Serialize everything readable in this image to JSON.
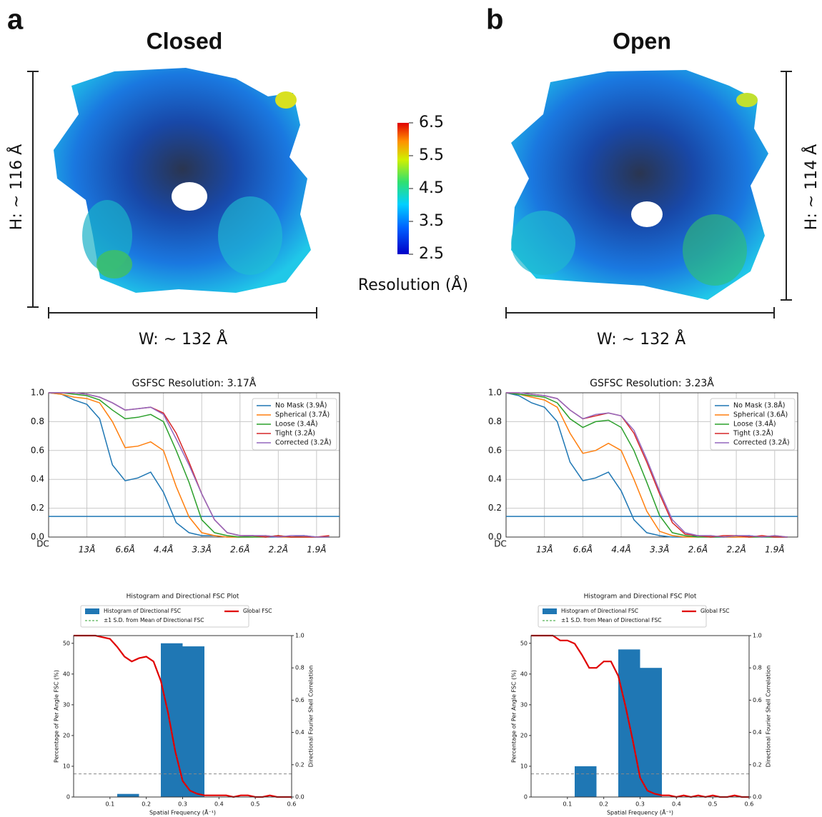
{
  "panels": [
    {
      "letter": "a",
      "title": "Closed",
      "height_label": "H: ~ 116 Å",
      "width_label": "W: ~ 132 Å"
    },
    {
      "letter": "b",
      "title": "Open",
      "height_label": "H: ~ 114 Å",
      "width_label": "W: ~ 132 Å"
    }
  ],
  "colorbar": {
    "label": "Resolution (Å)",
    "clim": [
      2.5,
      6.5
    ],
    "ticks": [
      6.5,
      5.5,
      4.5,
      3.5,
      2.5
    ]
  },
  "chart_data": [
    {
      "type": "line",
      "title": "GSFSC Resolution: 3.17Å",
      "x": [
        0,
        0.025,
        0.05,
        0.075,
        0.1,
        0.125,
        0.15,
        0.175,
        0.2,
        0.225,
        0.25,
        0.275,
        0.3,
        0.325,
        0.35,
        0.375,
        0.4,
        0.425,
        0.45,
        0.475,
        0.5,
        0.525,
        0.55
      ],
      "xlim": [
        0,
        0.57
      ],
      "ylim": [
        0,
        1
      ],
      "grid": true,
      "xticks": [
        {
          "value": 0,
          "label": "DC"
        },
        {
          "value": 0.075,
          "label": "13Å"
        },
        {
          "value": 0.15,
          "label": "6.6Å"
        },
        {
          "value": 0.225,
          "label": "4.4Å"
        },
        {
          "value": 0.3,
          "label": "3.3Å"
        },
        {
          "value": 0.375,
          "label": "2.6Å"
        },
        {
          "value": 0.45,
          "label": "2.2Å"
        },
        {
          "value": 0.525,
          "label": "1.9Å"
        }
      ],
      "yticks": [
        {
          "value": 0,
          "label": "0.0"
        },
        0.2,
        0.4,
        0.6,
        0.8,
        {
          "value": 1,
          "label": "1.0"
        }
      ],
      "threshold": {
        "value": 0.143,
        "color": "#1f77b4"
      },
      "series": [
        {
          "name": "No Mask (3.9Å)",
          "color": "#1f77b4",
          "values": [
            1,
            0.99,
            0.95,
            0.92,
            0.82,
            0.5,
            0.39,
            0.41,
            0.45,
            0.31,
            0.1,
            0.03,
            0.01,
            0.01,
            0,
            0,
            0.01,
            0,
            0,
            0,
            0.01,
            0,
            0
          ]
        },
        {
          "name": "Spherical (3.7Å)",
          "color": "#ff7f0e",
          "values": [
            1,
            0.99,
            0.97,
            0.96,
            0.93,
            0.8,
            0.62,
            0.63,
            0.66,
            0.6,
            0.35,
            0.14,
            0.03,
            0.01,
            0,
            0,
            0,
            0.01,
            0,
            0,
            0,
            0,
            0
          ]
        },
        {
          "name": "Loose (3.4Å)",
          "color": "#2ca02c",
          "values": [
            1,
            1,
            0.99,
            0.98,
            0.95,
            0.88,
            0.82,
            0.83,
            0.85,
            0.8,
            0.6,
            0.38,
            0.12,
            0.03,
            0.01,
            0,
            0,
            0,
            0.01,
            0,
            0,
            0,
            0
          ]
        },
        {
          "name": "Tight (3.2Å)",
          "color": "#d62728",
          "values": [
            1,
            1,
            1,
            0.99,
            0.97,
            0.93,
            0.88,
            0.89,
            0.9,
            0.86,
            0.72,
            0.52,
            0.3,
            0.12,
            0.03,
            0.01,
            0.01,
            0,
            0.01,
            0,
            0,
            0,
            0.01
          ]
        },
        {
          "name": "Corrected (3.2Å)",
          "color": "#9467bd",
          "values": [
            1,
            1,
            1,
            0.99,
            0.97,
            0.93,
            0.88,
            0.89,
            0.9,
            0.85,
            0.68,
            0.5,
            0.3,
            0.12,
            0.03,
            0.01,
            0.01,
            0.01,
            0,
            0.01,
            0.01,
            0,
            0
          ]
        }
      ]
    },
    {
      "type": "line",
      "title": "GSFSC Resolution: 3.23Å",
      "x": [
        0,
        0.025,
        0.05,
        0.075,
        0.1,
        0.125,
        0.15,
        0.175,
        0.2,
        0.225,
        0.25,
        0.275,
        0.3,
        0.325,
        0.35,
        0.375,
        0.4,
        0.425,
        0.45,
        0.475,
        0.5,
        0.525,
        0.55
      ],
      "xlim": [
        0,
        0.57
      ],
      "ylim": [
        0,
        1
      ],
      "grid": true,
      "xticks": [
        {
          "value": 0,
          "label": "DC"
        },
        {
          "value": 0.075,
          "label": "13Å"
        },
        {
          "value": 0.15,
          "label": "6.6Å"
        },
        {
          "value": 0.225,
          "label": "4.4Å"
        },
        {
          "value": 0.3,
          "label": "3.3Å"
        },
        {
          "value": 0.375,
          "label": "2.6Å"
        },
        {
          "value": 0.45,
          "label": "2.2Å"
        },
        {
          "value": 0.525,
          "label": "1.9Å"
        }
      ],
      "yticks": [
        {
          "value": 0,
          "label": "0.0"
        },
        0.2,
        0.4,
        0.6,
        0.8,
        {
          "value": 1,
          "label": "1.0"
        }
      ],
      "threshold": {
        "value": 0.143,
        "color": "#1f77b4"
      },
      "series": [
        {
          "name": "No Mask (3.8Å)",
          "color": "#1f77b4",
          "values": [
            1,
            0.98,
            0.93,
            0.9,
            0.8,
            0.52,
            0.39,
            0.41,
            0.45,
            0.32,
            0.12,
            0.03,
            0.01,
            0,
            0,
            0.01,
            0,
            0,
            0,
            0.01,
            0,
            0,
            0
          ]
        },
        {
          "name": "Spherical (3.6Å)",
          "color": "#ff7f0e",
          "values": [
            1,
            0.99,
            0.97,
            0.95,
            0.9,
            0.72,
            0.58,
            0.6,
            0.65,
            0.6,
            0.4,
            0.18,
            0.04,
            0.01,
            0,
            0,
            0.01,
            0,
            0,
            0,
            0,
            0.01,
            0
          ]
        },
        {
          "name": "Loose (3.4Å)",
          "color": "#2ca02c",
          "values": [
            1,
            0.99,
            0.98,
            0.97,
            0.93,
            0.82,
            0.76,
            0.8,
            0.81,
            0.76,
            0.6,
            0.38,
            0.15,
            0.03,
            0.01,
            0,
            0,
            0,
            0.01,
            0,
            0,
            0,
            0
          ]
        },
        {
          "name": "Tight (3.2Å)",
          "color": "#d62728",
          "values": [
            1,
            1,
            0.99,
            0.98,
            0.96,
            0.88,
            0.82,
            0.84,
            0.86,
            0.84,
            0.72,
            0.52,
            0.3,
            0.1,
            0.02,
            0.01,
            0,
            0.01,
            0.01,
            0,
            0.01,
            0,
            0
          ]
        },
        {
          "name": "Corrected (3.2Å)",
          "color": "#9467bd",
          "values": [
            1,
            1,
            0.99,
            0.98,
            0.96,
            0.88,
            0.82,
            0.85,
            0.86,
            0.84,
            0.74,
            0.54,
            0.32,
            0.12,
            0.03,
            0.01,
            0.01,
            0,
            0.01,
            0.01,
            0,
            0.01,
            0
          ]
        }
      ]
    },
    {
      "type": "histogram",
      "title": "Histogram and Directional FSC Plot",
      "x_label": "Spatial Frequency (Å⁻¹)",
      "y_label": "Percentage of Per Angle FSC (%)",
      "y2_label": "Directional Fourier Shell Correlation",
      "bins": [
        0,
        0.06,
        0.12,
        0.18,
        0.24,
        0.3,
        0.36
      ],
      "counts": [
        0,
        0,
        1,
        0,
        50,
        49
      ],
      "xlim": [
        0,
        0.6
      ],
      "ylim": [
        0,
        52.5
      ],
      "y2lim": [
        0,
        1
      ],
      "xticks": [
        0.1,
        0.2,
        0.3,
        0.4,
        0.5,
        0.6
      ],
      "yticks": [
        0,
        10,
        20,
        30,
        40,
        50
      ],
      "y2ticks": [
        {
          "value": 0,
          "label": "0.0"
        },
        0.2,
        0.4,
        0.6,
        0.8,
        {
          "value": 1,
          "label": "1.0"
        }
      ],
      "threshold": {
        "value": 0.143,
        "axis": "y2",
        "color": "#888888"
      },
      "series": [
        {
          "name": "Histogram of Directional FSC",
          "color": "#1f77b4",
          "marker": "patch"
        },
        {
          "name": "±1 S.D. from Mean of Directional FSC",
          "color": "#2ca02c",
          "marker": "dashed"
        },
        {
          "name": "Global FSC",
          "color": "#e00000",
          "marker": "line",
          "axis": "y2",
          "x": [
            0,
            0.02,
            0.04,
            0.06,
            0.08,
            0.1,
            0.12,
            0.14,
            0.16,
            0.18,
            0.2,
            0.22,
            0.24,
            0.26,
            0.28,
            0.3,
            0.32,
            0.34,
            0.36,
            0.38,
            0.4,
            0.42,
            0.44,
            0.46,
            0.48,
            0.5,
            0.52,
            0.54,
            0.56,
            0.58,
            0.6
          ],
          "values": [
            1,
            1,
            1,
            1,
            0.99,
            0.98,
            0.93,
            0.87,
            0.84,
            0.86,
            0.87,
            0.84,
            0.72,
            0.52,
            0.28,
            0.1,
            0.04,
            0.02,
            0.01,
            0.01,
            0.01,
            0.01,
            0,
            0.01,
            0.01,
            0,
            0,
            0.01,
            0,
            0,
            0
          ]
        }
      ]
    },
    {
      "type": "histogram",
      "title": "Histogram and Directional FSC Plot",
      "x_label": "Spatial Frequency (Å⁻¹)",
      "y_label": "Percentage of Per Angle FSC (%)",
      "y2_label": "Directional Fourier Shell Correlation",
      "bins": [
        0,
        0.06,
        0.12,
        0.18,
        0.24,
        0.3,
        0.36
      ],
      "counts": [
        0,
        0,
        10,
        0,
        48,
        42
      ],
      "xlim": [
        0,
        0.6
      ],
      "ylim": [
        0,
        52.5
      ],
      "y2lim": [
        0,
        1
      ],
      "xticks": [
        0.1,
        0.2,
        0.3,
        0.4,
        0.5,
        0.6
      ],
      "yticks": [
        0,
        10,
        20,
        30,
        40,
        50
      ],
      "y2ticks": [
        {
          "value": 0,
          "label": "0.0"
        },
        0.2,
        0.4,
        0.6,
        0.8,
        {
          "value": 1,
          "label": "1.0"
        }
      ],
      "threshold": {
        "value": 0.143,
        "axis": "y2",
        "color": "#888888"
      },
      "series": [
        {
          "name": "Histogram of Directional FSC",
          "color": "#1f77b4",
          "marker": "patch"
        },
        {
          "name": "±1 S.D. from Mean of Directional FSC",
          "color": "#2ca02c",
          "marker": "dashed"
        },
        {
          "name": "Global FSC",
          "color": "#e00000",
          "marker": "line",
          "axis": "y2",
          "x": [
            0,
            0.02,
            0.04,
            0.06,
            0.08,
            0.1,
            0.12,
            0.14,
            0.16,
            0.18,
            0.2,
            0.22,
            0.24,
            0.26,
            0.28,
            0.3,
            0.32,
            0.34,
            0.36,
            0.38,
            0.4,
            0.42,
            0.44,
            0.46,
            0.48,
            0.5,
            0.52,
            0.54,
            0.56,
            0.58,
            0.6
          ],
          "values": [
            1,
            1,
            1,
            1,
            0.97,
            0.97,
            0.95,
            0.88,
            0.8,
            0.8,
            0.84,
            0.84,
            0.75,
            0.56,
            0.35,
            0.12,
            0.04,
            0.02,
            0.01,
            0.01,
            0,
            0.01,
            0,
            0.01,
            0,
            0.01,
            0,
            0,
            0.01,
            0,
            0
          ]
        }
      ]
    }
  ]
}
